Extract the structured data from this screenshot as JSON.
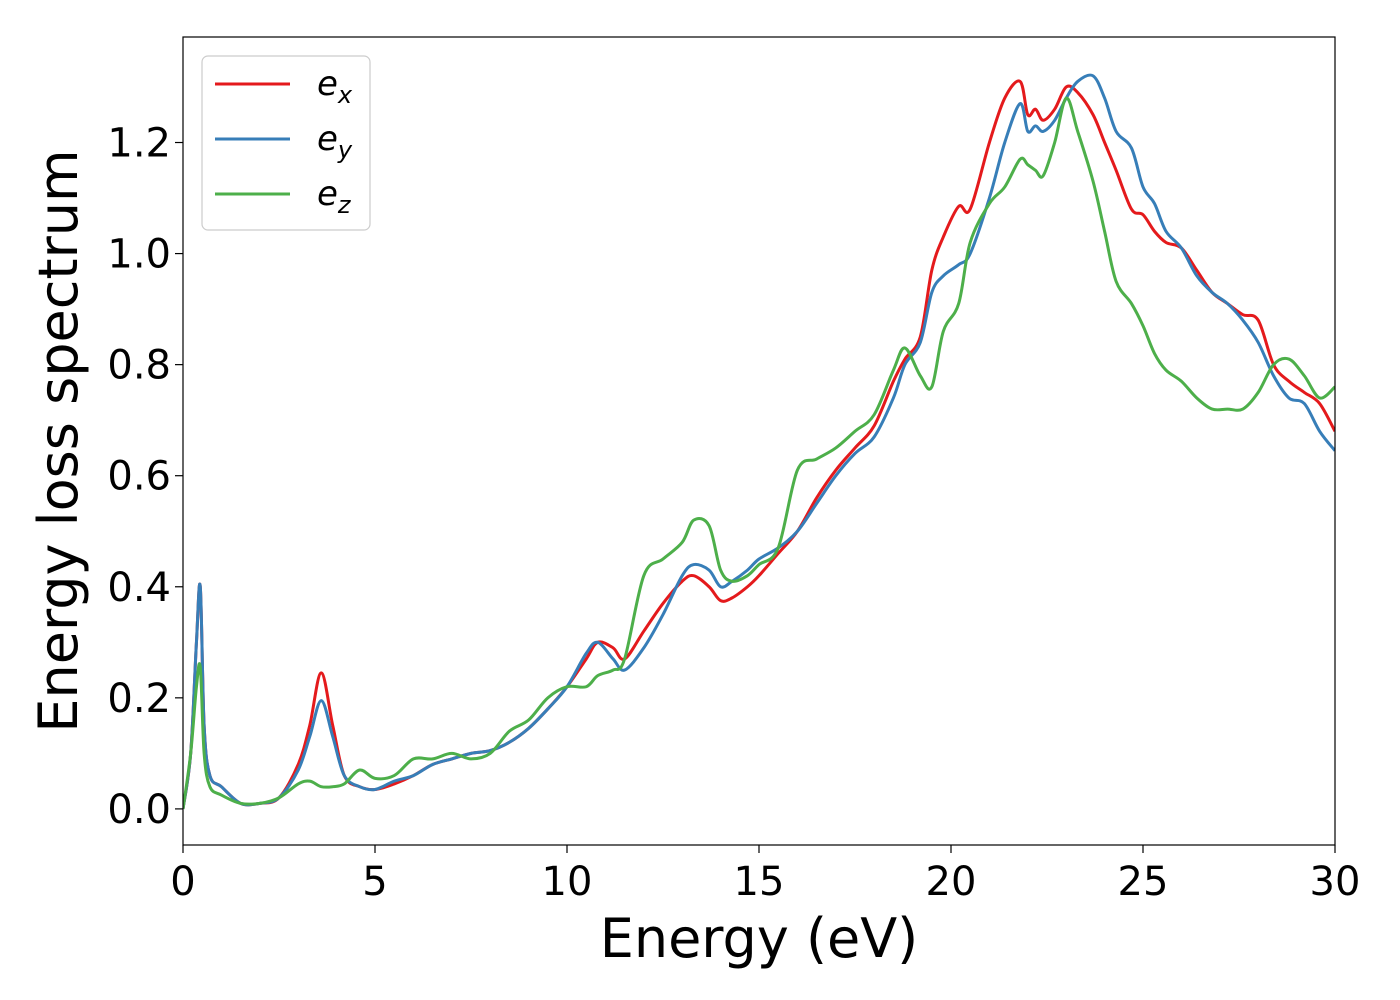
{
  "chart_data": {
    "type": "line",
    "title": "",
    "xlabel": "Energy (eV)",
    "ylabel": "Energy loss spectrum",
    "xlim": [
      0,
      30
    ],
    "ylim": [
      -0.065,
      1.39
    ],
    "xticks": [
      0,
      5,
      10,
      15,
      20,
      25,
      30
    ],
    "xtick_labels": [
      "0",
      "5",
      "10",
      "15",
      "20",
      "25",
      "30"
    ],
    "yticks": [
      0.0,
      0.2,
      0.4,
      0.6,
      0.8,
      1.0,
      1.2
    ],
    "ytick_labels": [
      "0.0",
      "0.2",
      "0.4",
      "0.6",
      "0.8",
      "1.0",
      "1.2"
    ],
    "grid": false,
    "legend_position": "top-left",
    "series": [
      {
        "name": "e_x",
        "label_main": "e",
        "label_sub": "x",
        "color": "#e41a1c",
        "x": [
          0,
          0.2,
          0.35,
          0.45,
          0.55,
          0.7,
          1.0,
          1.5,
          2.0,
          2.5,
          3.0,
          3.3,
          3.6,
          3.9,
          4.2,
          4.6,
          5.0,
          5.5,
          6.0,
          6.5,
          7.0,
          7.5,
          8.0,
          8.5,
          9.0,
          9.5,
          10.0,
          10.5,
          10.8,
          11.2,
          11.5,
          12.0,
          12.5,
          13.0,
          13.3,
          13.7,
          14.0,
          14.3,
          14.7,
          15.0,
          15.5,
          16.0,
          16.5,
          17.0,
          17.5,
          18.0,
          18.5,
          18.8,
          19.2,
          19.5,
          19.8,
          20.2,
          20.5,
          21.0,
          21.4,
          21.8,
          22.0,
          22.2,
          22.4,
          22.7,
          23.0,
          23.3,
          23.7,
          24.0,
          24.3,
          24.7,
          25.0,
          25.3,
          25.6,
          26.0,
          26.4,
          26.8,
          27.2,
          27.6,
          28.0,
          28.4,
          28.8,
          29.2,
          29.6,
          30.0
        ],
        "values": [
          0.0,
          0.1,
          0.3,
          0.4,
          0.15,
          0.06,
          0.04,
          0.01,
          0.01,
          0.02,
          0.08,
          0.15,
          0.245,
          0.15,
          0.06,
          0.04,
          0.035,
          0.045,
          0.06,
          0.08,
          0.09,
          0.1,
          0.105,
          0.12,
          0.145,
          0.18,
          0.22,
          0.27,
          0.3,
          0.29,
          0.27,
          0.32,
          0.37,
          0.41,
          0.42,
          0.4,
          0.375,
          0.38,
          0.4,
          0.42,
          0.46,
          0.5,
          0.56,
          0.61,
          0.65,
          0.69,
          0.77,
          0.81,
          0.85,
          0.97,
          1.03,
          1.085,
          1.08,
          1.2,
          1.28,
          1.31,
          1.25,
          1.26,
          1.24,
          1.26,
          1.3,
          1.29,
          1.25,
          1.2,
          1.15,
          1.08,
          1.07,
          1.04,
          1.02,
          1.01,
          0.97,
          0.93,
          0.91,
          0.89,
          0.88,
          0.8,
          0.77,
          0.75,
          0.73,
          0.68
        ]
      },
      {
        "name": "e_y",
        "label_main": "e",
        "label_sub": "y",
        "color": "#377eb8",
        "x": [
          0,
          0.2,
          0.35,
          0.45,
          0.55,
          0.7,
          1.0,
          1.5,
          2.0,
          2.5,
          3.0,
          3.3,
          3.6,
          3.9,
          4.2,
          4.6,
          5.0,
          5.5,
          6.0,
          6.5,
          7.0,
          7.5,
          8.0,
          8.5,
          9.0,
          9.5,
          10.0,
          10.5,
          10.8,
          11.2,
          11.5,
          12.0,
          12.5,
          13.0,
          13.3,
          13.7,
          14.0,
          14.3,
          14.7,
          15.0,
          15.5,
          16.0,
          16.5,
          17.0,
          17.5,
          18.0,
          18.5,
          18.8,
          19.2,
          19.5,
          19.8,
          20.2,
          20.5,
          21.0,
          21.4,
          21.8,
          22.0,
          22.2,
          22.4,
          22.7,
          23.0,
          23.3,
          23.7,
          24.0,
          24.3,
          24.7,
          25.0,
          25.3,
          25.6,
          26.0,
          26.4,
          26.8,
          27.2,
          27.6,
          28.0,
          28.4,
          28.8,
          29.2,
          29.6,
          30.0
        ],
        "values": [
          0.0,
          0.1,
          0.3,
          0.4,
          0.15,
          0.06,
          0.04,
          0.01,
          0.01,
          0.02,
          0.07,
          0.13,
          0.195,
          0.13,
          0.06,
          0.04,
          0.035,
          0.05,
          0.06,
          0.08,
          0.09,
          0.1,
          0.105,
          0.12,
          0.145,
          0.18,
          0.22,
          0.28,
          0.3,
          0.27,
          0.25,
          0.29,
          0.35,
          0.42,
          0.44,
          0.43,
          0.4,
          0.41,
          0.43,
          0.45,
          0.47,
          0.5,
          0.55,
          0.6,
          0.64,
          0.67,
          0.74,
          0.8,
          0.84,
          0.93,
          0.96,
          0.98,
          1.0,
          1.1,
          1.2,
          1.27,
          1.22,
          1.23,
          1.22,
          1.24,
          1.28,
          1.31,
          1.32,
          1.28,
          1.22,
          1.19,
          1.12,
          1.09,
          1.04,
          1.01,
          0.96,
          0.93,
          0.91,
          0.88,
          0.84,
          0.78,
          0.74,
          0.73,
          0.68,
          0.645
        ]
      },
      {
        "name": "e_z",
        "label_main": "e",
        "label_sub": "z",
        "color": "#4daf4a",
        "x": [
          0,
          0.2,
          0.35,
          0.45,
          0.55,
          0.7,
          1.0,
          1.5,
          2.0,
          2.5,
          3.0,
          3.3,
          3.6,
          3.9,
          4.2,
          4.6,
          5.0,
          5.5,
          6.0,
          6.5,
          7.0,
          7.5,
          8.0,
          8.5,
          9.0,
          9.5,
          10.0,
          10.5,
          10.8,
          11.2,
          11.5,
          12.0,
          12.5,
          13.0,
          13.3,
          13.7,
          14.0,
          14.3,
          14.7,
          15.0,
          15.5,
          16.0,
          16.5,
          17.0,
          17.5,
          18.0,
          18.5,
          18.8,
          19.2,
          19.5,
          19.8,
          20.2,
          20.5,
          21.0,
          21.4,
          21.8,
          22.0,
          22.2,
          22.4,
          22.7,
          23.0,
          23.3,
          23.7,
          24.0,
          24.3,
          24.7,
          25.0,
          25.3,
          25.6,
          26.0,
          26.4,
          26.8,
          27.2,
          27.6,
          28.0,
          28.4,
          28.8,
          29.2,
          29.6,
          30.0
        ],
        "values": [
          0.0,
          0.1,
          0.22,
          0.255,
          0.1,
          0.04,
          0.025,
          0.01,
          0.01,
          0.02,
          0.045,
          0.05,
          0.04,
          0.04,
          0.045,
          0.07,
          0.055,
          0.06,
          0.09,
          0.09,
          0.1,
          0.09,
          0.1,
          0.14,
          0.16,
          0.2,
          0.22,
          0.22,
          0.24,
          0.25,
          0.27,
          0.42,
          0.45,
          0.48,
          0.52,
          0.51,
          0.43,
          0.41,
          0.42,
          0.44,
          0.47,
          0.61,
          0.63,
          0.65,
          0.68,
          0.71,
          0.79,
          0.83,
          0.78,
          0.76,
          0.86,
          0.91,
          1.02,
          1.09,
          1.12,
          1.17,
          1.16,
          1.15,
          1.14,
          1.2,
          1.28,
          1.22,
          1.13,
          1.04,
          0.95,
          0.91,
          0.87,
          0.82,
          0.79,
          0.77,
          0.74,
          0.72,
          0.72,
          0.72,
          0.75,
          0.8,
          0.81,
          0.78,
          0.74,
          0.76
        ]
      }
    ]
  }
}
